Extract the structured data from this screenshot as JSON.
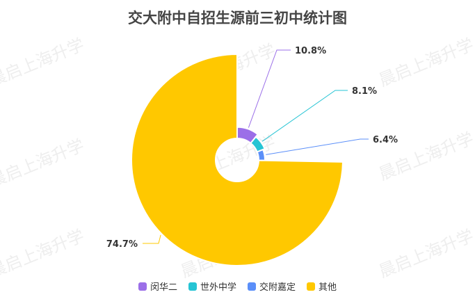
{
  "watermark": "晨启上海升学",
  "chart_data": {
    "type": "pie",
    "subtype": "rose-donut",
    "title": "交大附中自招生源前三初中统计图",
    "categories": [
      "闵华二",
      "世外中学",
      "交附嘉定",
      "其他"
    ],
    "values": [
      10.8,
      8.1,
      6.4,
      74.7
    ],
    "labels": [
      "10.8%",
      "8.1%",
      "6.4%",
      "74.7%"
    ],
    "colors": [
      "#9B6FE8",
      "#26C4D4",
      "#5B8FF9",
      "#FFC800"
    ],
    "legend_position": "bottom"
  }
}
